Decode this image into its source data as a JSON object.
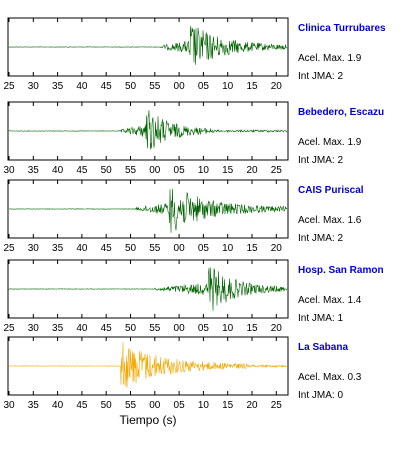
{
  "chart_data": [
    {
      "type": "line",
      "station": "Clinica Turrubares",
      "accel_label": "Acel. Max. 1.9",
      "int_label": "Int JMA: 2",
      "color": "#006400",
      "x_ticks": [
        "25",
        "30",
        "35",
        "40",
        "45",
        "50",
        "55",
        "00",
        "05",
        "10",
        "15",
        "20"
      ],
      "waveform": {
        "onset_label": "55",
        "onset_offset": 1,
        "peak_label": "00",
        "peak_offset": 2,
        "peak_amp": 0.95,
        "coda_len": 20
      }
    },
    {
      "type": "line",
      "station": "Bebedero, Escazu",
      "accel_label": "Acel. Max. 1.9",
      "int_label": "Int JMA: 2",
      "color": "#006400",
      "x_ticks": [
        "30",
        "35",
        "40",
        "45",
        "50",
        "55",
        "00",
        "05",
        "10",
        "15",
        "20",
        "25"
      ],
      "waveform": {
        "onset_label": "50",
        "onset_offset": 3,
        "peak_label": "55",
        "peak_offset": 3,
        "peak_amp": 0.98,
        "coda_len": 14
      }
    },
    {
      "type": "line",
      "station": "CAIS Puriscal",
      "accel_label": "Acel. Max. 1.6",
      "int_label": "Int JMA: 2",
      "color": "#006400",
      "x_ticks": [
        "25",
        "30",
        "35",
        "40",
        "45",
        "50",
        "55",
        "00",
        "05",
        "10",
        "15",
        "20"
      ],
      "waveform": {
        "onset_label": "50",
        "onset_offset": 1,
        "peak_label": "55",
        "peak_offset": 3,
        "peak_amp": 0.92,
        "coda_len": 24
      }
    },
    {
      "type": "line",
      "station": "Hosp. San Ramon",
      "accel_label": "Acel. Max. 1.4",
      "int_label": "Int JMA: 1",
      "color": "#006400",
      "x_ticks": [
        "25",
        "30",
        "35",
        "40",
        "45",
        "50",
        "55",
        "00",
        "05",
        "10",
        "15",
        "20"
      ],
      "waveform": {
        "onset_label": "55",
        "onset_offset": 0,
        "peak_label": "05",
        "peak_offset": 1,
        "peak_amp": 0.95,
        "coda_len": 16
      }
    },
    {
      "type": "line",
      "station": "La Sabana",
      "accel_label": "Acel. Max. 0.3",
      "int_label": "Int JMA: 0",
      "color": "#f4a700",
      "x_ticks": [
        "30",
        "35",
        "40",
        "45",
        "50",
        "55",
        "00",
        "05",
        "10",
        "15",
        "20",
        "25"
      ],
      "x_label": "Tiempo (s)",
      "waveform": {
        "onset_label": "50",
        "onset_offset": 3,
        "peak_label": "50",
        "peak_offset": 3,
        "peak_amp": 0.95,
        "coda_len": 26
      }
    }
  ]
}
